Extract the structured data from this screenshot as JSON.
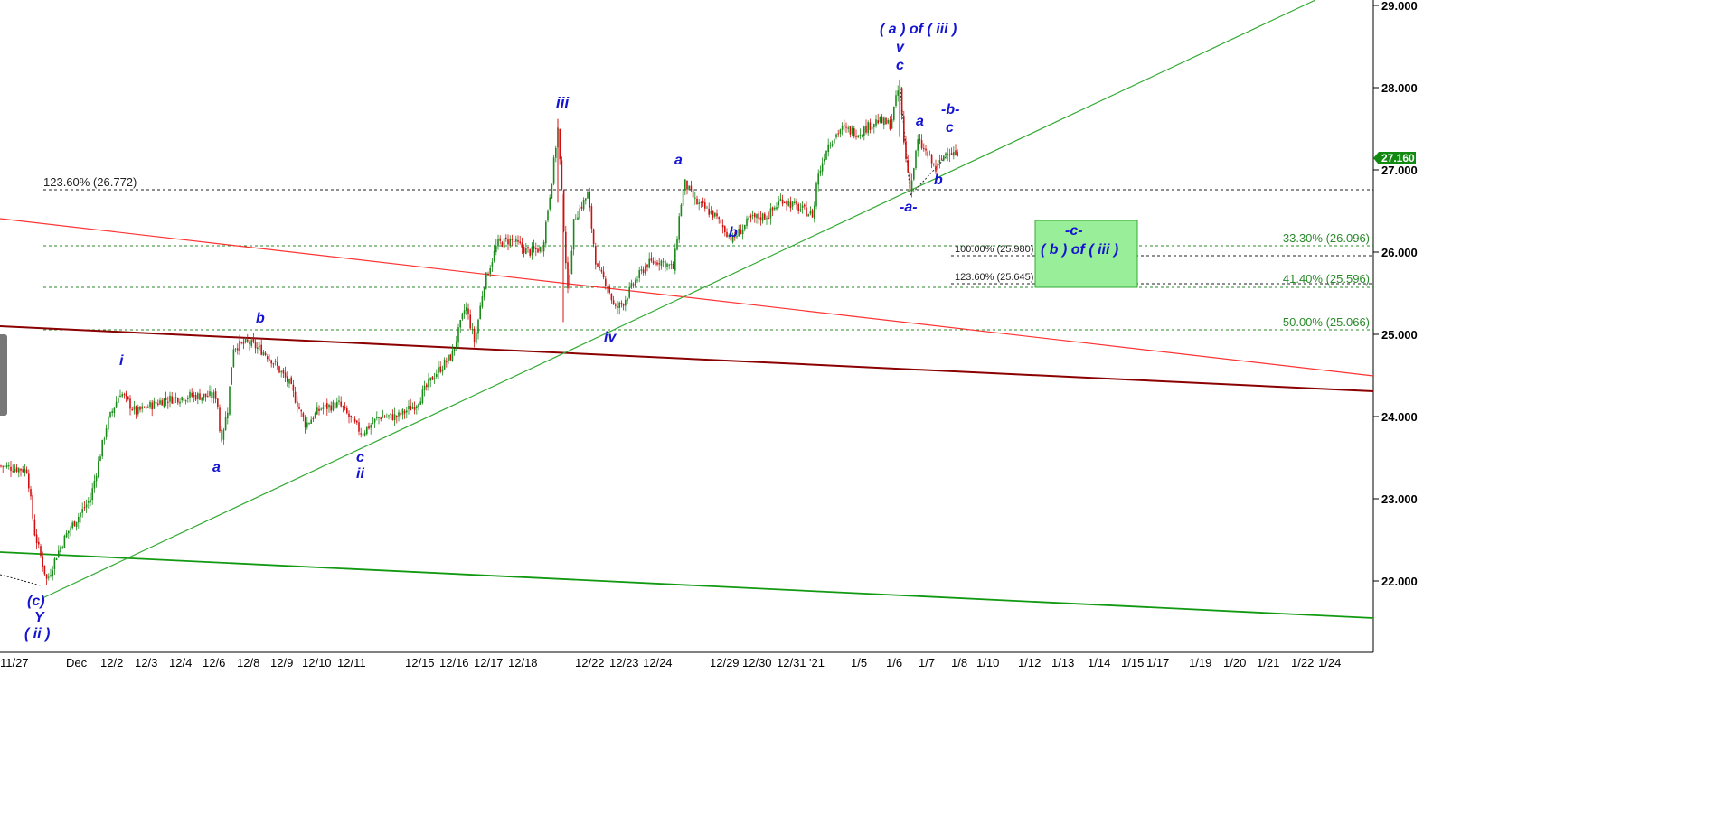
{
  "chart_data": {
    "type": "candlestick",
    "colors": {
      "up": "#1a8a1a",
      "down": "#d01010",
      "wave_label": "#1414d2",
      "fib_green": "#2a8a2a",
      "fib_black": "#222222",
      "target_box": "#99ee99"
    },
    "yaxis": {
      "ticks": [
        "22.000",
        "23.000",
        "24.000",
        "25.000",
        "26.000",
        "27.000",
        "28.000",
        "29.000"
      ],
      "range": [
        21.15,
        29.1
      ],
      "last_price": "27.160"
    },
    "xaxis": {
      "ticks": [
        "11/27",
        "Dec",
        "12/2",
        "12/3",
        "12/4",
        "12/6",
        "12/8",
        "12/9",
        "12/10",
        "12/11",
        "12/15",
        "12/16",
        "12/17",
        "12/18",
        "12/22",
        "12/23",
        "12/24",
        "12/29",
        "12/30",
        "12/31",
        "'21",
        "1/5",
        "1/6",
        "1/7",
        "1/8",
        "1/10",
        "1/12",
        "1/13",
        "1/14",
        "1/15",
        "1/17",
        "1/19",
        "1/20",
        "1/21",
        "1/22",
        "1/24"
      ]
    },
    "price_path": [
      [
        0,
        23.4
      ],
      [
        30,
        23.35
      ],
      [
        38,
        22.6
      ],
      [
        52,
        22.0
      ],
      [
        62,
        22.3
      ],
      [
        75,
        22.6
      ],
      [
        100,
        23.0
      ],
      [
        118,
        23.9
      ],
      [
        133,
        24.3
      ],
      [
        150,
        24.05
      ],
      [
        180,
        24.2
      ],
      [
        210,
        24.25
      ],
      [
        240,
        24.25
      ],
      [
        244,
        23.7
      ],
      [
        252,
        24.1
      ],
      [
        258,
        24.85
      ],
      [
        275,
        24.9
      ],
      [
        290,
        24.8
      ],
      [
        300,
        24.7
      ],
      [
        320,
        24.4
      ],
      [
        338,
        23.9
      ],
      [
        355,
        24.1
      ],
      [
        375,
        24.15
      ],
      [
        400,
        23.8
      ],
      [
        420,
        24.0
      ],
      [
        440,
        24.0
      ],
      [
        460,
        24.15
      ],
      [
        480,
        24.5
      ],
      [
        500,
        24.75
      ],
      [
        515,
        25.35
      ],
      [
        525,
        24.9
      ],
      [
        535,
        25.6
      ],
      [
        550,
        26.1
      ],
      [
        565,
        26.15
      ],
      [
        585,
        26.0
      ],
      [
        600,
        26.05
      ],
      [
        610,
        26.85
      ],
      [
        617,
        27.5
      ],
      [
        622,
        26.6
      ],
      [
        628,
        25.5
      ],
      [
        635,
        26.4
      ],
      [
        650,
        26.7
      ],
      [
        660,
        25.8
      ],
      [
        672,
        25.6
      ],
      [
        680,
        25.3
      ],
      [
        690,
        25.4
      ],
      [
        700,
        25.6
      ],
      [
        715,
        25.85
      ],
      [
        730,
        25.9
      ],
      [
        745,
        25.8
      ],
      [
        752,
        26.5
      ],
      [
        757,
        26.85
      ],
      [
        770,
        26.6
      ],
      [
        790,
        26.45
      ],
      [
        810,
        26.15
      ],
      [
        830,
        26.4
      ],
      [
        850,
        26.45
      ],
      [
        865,
        26.65
      ],
      [
        880,
        26.55
      ],
      [
        900,
        26.45
      ],
      [
        903,
        26.85
      ],
      [
        915,
        27.3
      ],
      [
        930,
        27.5
      ],
      [
        950,
        27.45
      ],
      [
        970,
        27.6
      ],
      [
        985,
        27.55
      ],
      [
        995,
        28.05
      ],
      [
        1000,
        27.3
      ],
      [
        1007,
        26.75
      ],
      [
        1015,
        27.35
      ],
      [
        1025,
        27.2
      ],
      [
        1035,
        27.0
      ],
      [
        1048,
        27.25
      ],
      [
        1060,
        27.16
      ]
    ]
  },
  "annotations": {
    "fib_levels": [
      {
        "label": "123.60% (26.772)",
        "value": 26.772
      },
      {
        "label": "33.30% (26.096)",
        "value": 26.096
      },
      {
        "label": "100.00% (25.980)",
        "value": 25.98
      },
      {
        "label": "123.60% (25.645)",
        "value": 25.645
      },
      {
        "label": "41.40% (25.596)",
        "value": 25.596
      },
      {
        "label": "50.00% (25.066)",
        "value": 25.066
      }
    ],
    "wave_labels": {
      "c_lbl": "(c)",
      "Y": "Y",
      "ii_paren": "( ii )",
      "i": "i",
      "a1": "a",
      "b1": "b",
      "c1": "c",
      "ii": "ii",
      "iii": "iii",
      "iv": "iv",
      "a2": "a",
      "b2": "b",
      "a_of_iii": "( a ) of ( iii )",
      "v": "v",
      "c2": "c",
      "a3": "a",
      "b3": "b",
      "minus_b": "-b-",
      "c3": "c",
      "minus_a": "-a-",
      "minus_c": "-c-",
      "b_of_iii": "( b ) of ( iii )"
    }
  }
}
